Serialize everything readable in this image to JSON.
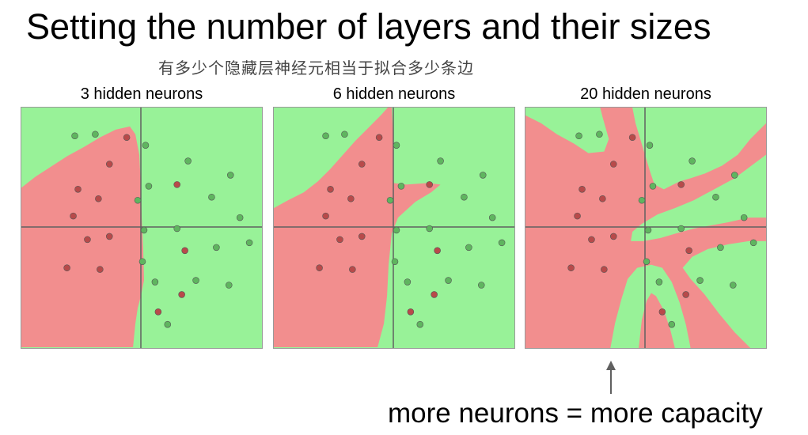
{
  "slide": {
    "title": "Setting the number of layers and their sizes",
    "subtitle": "有多少个隐藏层神经元相当于拟合多少条边",
    "caption": "more neurons = more capacity"
  },
  "colors": {
    "green_region": "#98f298",
    "red_region": "#f28e8e",
    "green_point": "#5fb55f",
    "red_point": "#b84a4a",
    "axis": "#606060",
    "arrow": "#606060"
  },
  "panels": [
    {
      "label": "3 hidden neurons"
    },
    {
      "label": "6 hidden neurons"
    },
    {
      "label": "20 hidden neurons"
    }
  ]
}
